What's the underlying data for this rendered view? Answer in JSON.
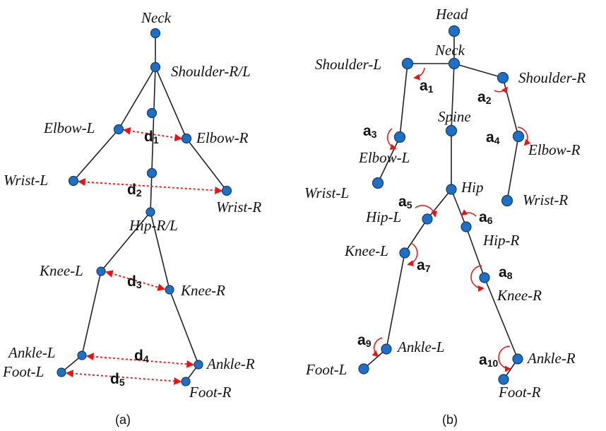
{
  "panel_a": {
    "caption": "(a)",
    "labels": {
      "neck": "Neck",
      "shoulder": "Shoulder-R/L",
      "elbow_l": "Elbow-L",
      "elbow_r": "Elbow-R",
      "wrist_l": "Wrist-L",
      "wrist_r": "Wrist-R",
      "hip": "Hip-R/L",
      "knee_l": "Knee-L",
      "knee_r": "Knee-R",
      "ankle_l": "Ankle-L",
      "ankle_r": "Ankle-R",
      "foot_l": "Foot-L",
      "foot_r": "Foot-R"
    },
    "distances": [
      {
        "letter": "d",
        "sub": "1"
      },
      {
        "letter": "d",
        "sub": "2"
      },
      {
        "letter": "d",
        "sub": "3"
      },
      {
        "letter": "d",
        "sub": "4"
      },
      {
        "letter": "d",
        "sub": "5"
      }
    ]
  },
  "panel_b": {
    "caption": "(b)",
    "labels": {
      "head": "Head",
      "neck": "Neck",
      "shoulder_l": "Shoulder-L",
      "shoulder_r": "Shoulder-R",
      "spine": "Spine",
      "elbow_l": "Elbow-L",
      "elbow_r": "Elbow-R",
      "wrist_l": "Wrist-L",
      "wrist_r": "Wrist-R",
      "hip": "Hip",
      "hip_l": "Hip-L",
      "hip_r": "Hip-R",
      "knee_l": "Knee-L",
      "knee_r": "Knee-R",
      "ankle_l": "Ankle-L",
      "ankle_r": "Ankle-R",
      "foot_l": "Foot-L",
      "foot_r": "Foot-R"
    },
    "angles": [
      {
        "letter": "a",
        "sub": "1"
      },
      {
        "letter": "a",
        "sub": "2"
      },
      {
        "letter": "a",
        "sub": "3"
      },
      {
        "letter": "a",
        "sub": "4"
      },
      {
        "letter": "a",
        "sub": "5"
      },
      {
        "letter": "a",
        "sub": "6"
      },
      {
        "letter": "a",
        "sub": "7"
      },
      {
        "letter": "a",
        "sub": "8"
      },
      {
        "letter": "a",
        "sub": "9"
      },
      {
        "letter": "a",
        "sub": "10"
      }
    ]
  }
}
